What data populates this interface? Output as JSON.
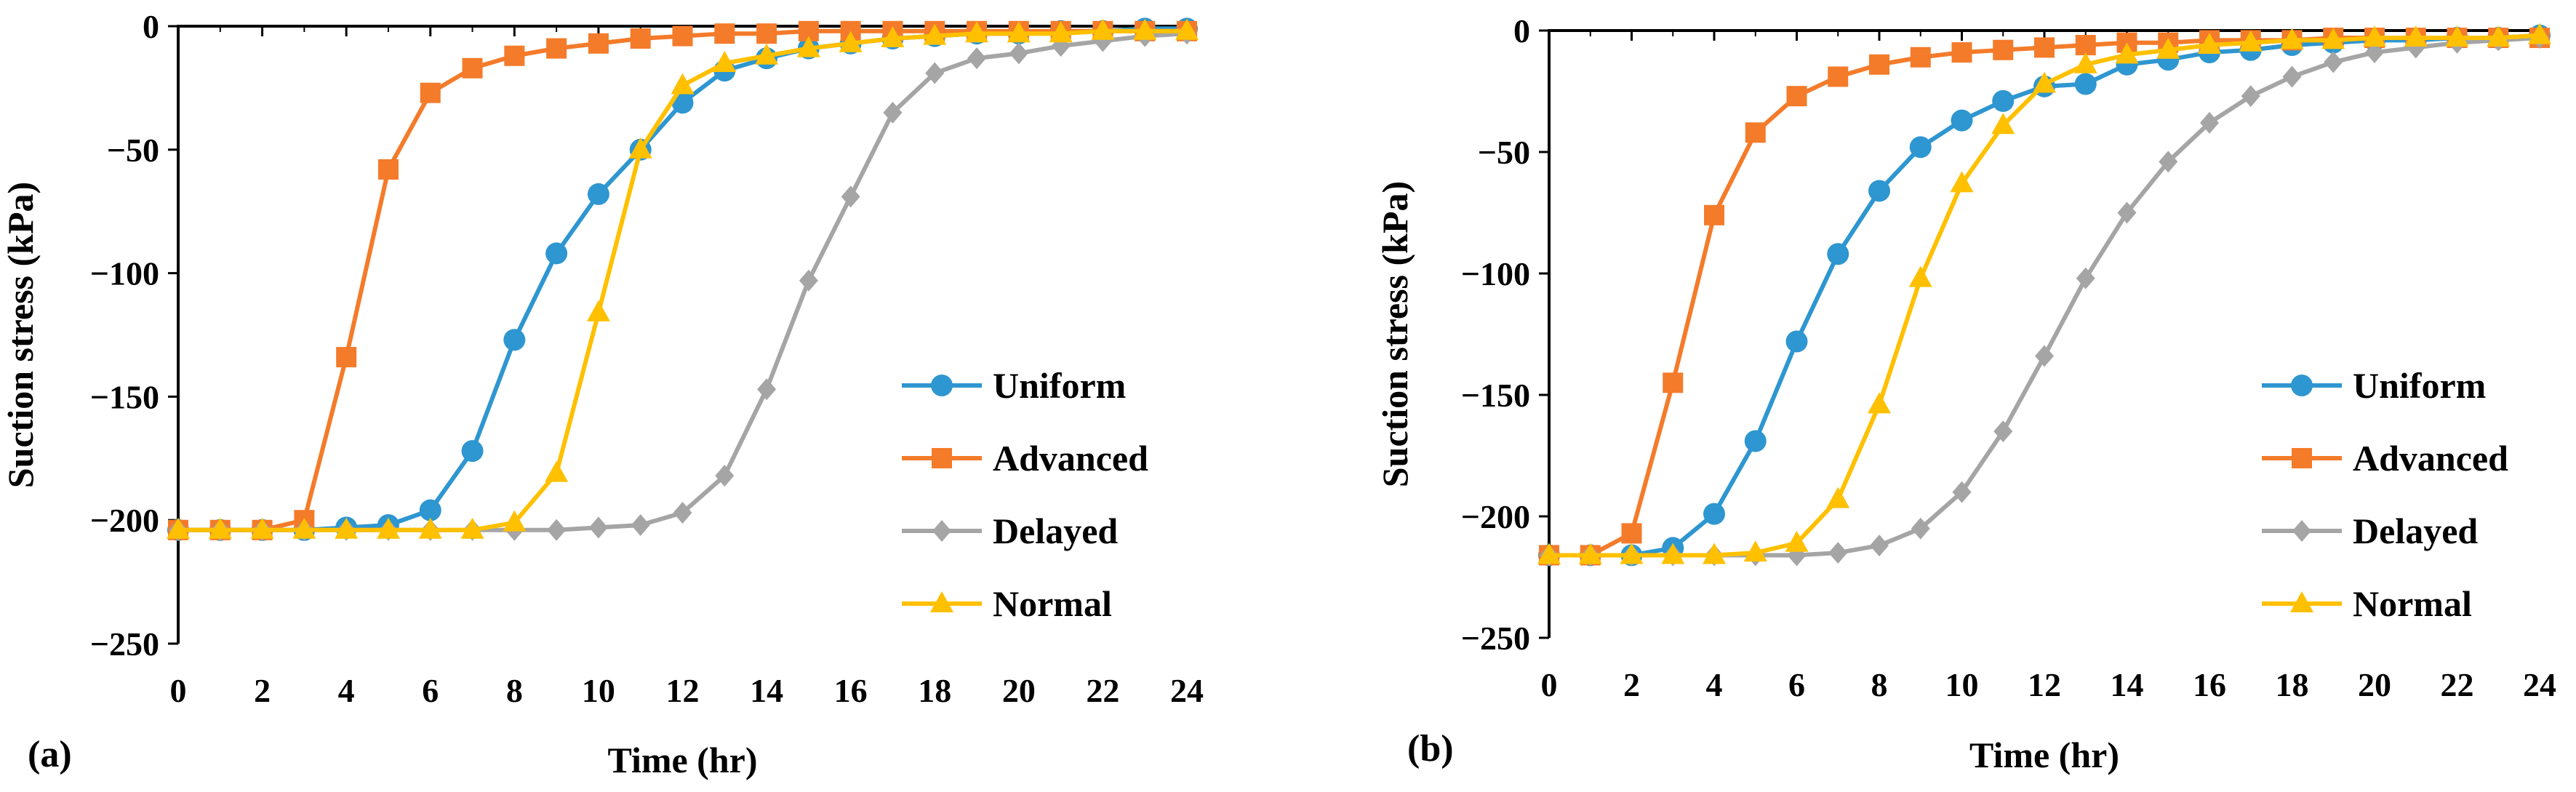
{
  "colors": {
    "Uniform": "#2E96D0",
    "Advanced": "#F47B2A",
    "Delayed": "#A5A5A5",
    "Normal": "#FFC000",
    "axis": "#000000"
  },
  "markers": {
    "Uniform": "circle",
    "Advanced": "square",
    "Delayed": "diamond",
    "Normal": "triangle"
  },
  "chart_data": [
    {
      "type": "line",
      "panel_label": "(a)",
      "xlabel": "Time (hr)",
      "ylabel": "Suction stress (kPa)",
      "xlim": [
        0,
        24
      ],
      "ylim": [
        -250,
        0
      ],
      "x_ticks": [
        "0",
        "2",
        "4",
        "6",
        "8",
        "10",
        "12",
        "14",
        "16",
        "18",
        "20",
        "22",
        "24"
      ],
      "y_ticks": [
        "0",
        "−50",
        "−100",
        "−150",
        "−200",
        "−250"
      ],
      "grid": false,
      "legend_position": "lower-right",
      "x": [
        0,
        1,
        2,
        3,
        4,
        5,
        6,
        7,
        8,
        9,
        10,
        11,
        12,
        13,
        14,
        15,
        16,
        17,
        18,
        19,
        20,
        21,
        22,
        23,
        24
      ],
      "series": [
        {
          "name": "Uniform",
          "values": [
            -204,
            -204,
            -204,
            -204,
            -203,
            -202,
            -196,
            -172,
            -127,
            -92,
            -68,
            -50,
            -31,
            -18,
            -13,
            -9,
            -7,
            -5,
            -4,
            -3,
            -3,
            -2,
            -2,
            -1,
            -1
          ]
        },
        {
          "name": "Advanced",
          "values": [
            -204,
            -204,
            -204,
            -200,
            -134,
            -58,
            -27,
            -17,
            -12,
            -9,
            -7,
            -5,
            -4,
            -3,
            -3,
            -2,
            -2,
            -2,
            -2,
            -2,
            -2,
            -2,
            -2,
            -2,
            -2
          ]
        },
        {
          "name": "Delayed",
          "values": [
            -204,
            -204,
            -204,
            -204,
            -204,
            -204,
            -204,
            -204,
            -204,
            -204,
            -203,
            -202,
            -197,
            -182,
            -147,
            -103,
            -69,
            -35,
            -19,
            -13,
            -11,
            -8,
            -6,
            -4,
            -3
          ]
        },
        {
          "name": "Normal",
          "values": [
            -204,
            -204,
            -204,
            -204,
            -204,
            -204,
            -204,
            -204,
            -201,
            -181,
            -116,
            -50,
            -24,
            -15,
            -12,
            -9,
            -7,
            -5,
            -4,
            -3,
            -3,
            -3,
            -2,
            -2,
            -2
          ]
        }
      ]
    },
    {
      "type": "line",
      "panel_label": "(b)",
      "xlabel": "Time (hr)",
      "ylabel": "Suction stress (kPa)",
      "xlim": [
        0,
        24
      ],
      "ylim": [
        -250,
        0
      ],
      "x_ticks": [
        "0",
        "2",
        "4",
        "6",
        "8",
        "10",
        "12",
        "14",
        "16",
        "18",
        "20",
        "22",
        "24"
      ],
      "y_ticks": [
        "0",
        "−50",
        "−100",
        "−150",
        "−200",
        "−250"
      ],
      "grid": false,
      "legend_position": "lower-right",
      "x": [
        0,
        1,
        2,
        3,
        4,
        5,
        6,
        7,
        8,
        9,
        10,
        11,
        12,
        13,
        14,
        15,
        16,
        17,
        18,
        19,
        20,
        21,
        22,
        23,
        24
      ],
      "series": [
        {
          "name": "Uniform",
          "values": [
            -216,
            -216,
            -216,
            -213,
            -199,
            -169,
            -128,
            -92,
            -66,
            -48,
            -37,
            -29,
            -23,
            -22,
            -14,
            -12,
            -9,
            -8,
            -6,
            -5,
            -4,
            -4,
            -3,
            -3,
            -2
          ]
        },
        {
          "name": "Advanced",
          "values": [
            -216,
            -216,
            -207,
            -145,
            -76,
            -42,
            -27,
            -19,
            -14,
            -11,
            -9,
            -8,
            -7,
            -6,
            -5,
            -5,
            -4,
            -4,
            -4,
            -3,
            -3,
            -3,
            -3,
            -3,
            -3
          ]
        },
        {
          "name": "Delayed",
          "values": [
            -216,
            -216,
            -216,
            -216,
            -216,
            -216,
            -216,
            -215,
            -212,
            -205,
            -190,
            -165,
            -134,
            -102,
            -75,
            -54,
            -38,
            -27,
            -19,
            -13,
            -9,
            -7,
            -5,
            -4,
            -3
          ]
        },
        {
          "name": "Normal",
          "values": [
            -216,
            -216,
            -216,
            -216,
            -216,
            -215,
            -211,
            -193,
            -154,
            -102,
            -63,
            -39,
            -22,
            -14,
            -10,
            -8,
            -6,
            -5,
            -4,
            -4,
            -3,
            -3,
            -3,
            -3,
            -2
          ]
        }
      ]
    }
  ]
}
